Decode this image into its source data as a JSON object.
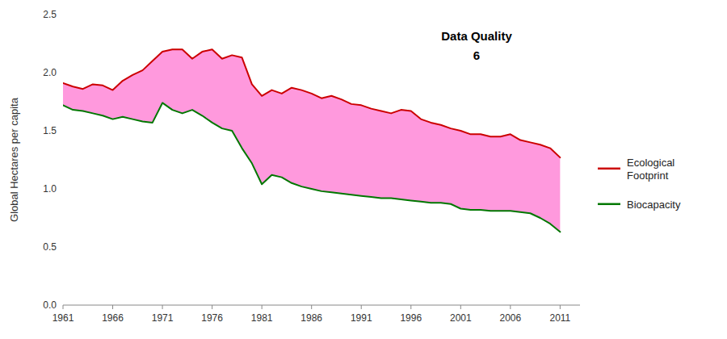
{
  "chart_data": {
    "type": "line",
    "ylabel": "Global Hectares per capita",
    "annotation": "Data Quality\n6",
    "color": "#ff99dd",
    "x": [
      1961,
      1962,
      1963,
      1964,
      1965,
      1966,
      1967,
      1968,
      1969,
      1970,
      1971,
      1972,
      1973,
      1974,
      1975,
      1976,
      1977,
      1978,
      1979,
      1980,
      1981,
      1982,
      1983,
      1984,
      1985,
      1986,
      1987,
      1988,
      1989,
      1990,
      1991,
      1992,
      1993,
      1994,
      1995,
      1996,
      1997,
      1998,
      1999,
      2000,
      2001,
      2002,
      2003,
      2004,
      2005,
      2006,
      2007,
      2008,
      2009,
      2010,
      2011
    ],
    "series": [
      {
        "name": "Ecological\nFootprint",
        "color": "#cc0000",
        "values": [
          1.91,
          1.88,
          1.86,
          1.9,
          1.89,
          1.85,
          1.93,
          1.98,
          2.02,
          2.1,
          2.18,
          2.2,
          2.2,
          2.12,
          2.18,
          2.2,
          2.12,
          2.15,
          2.13,
          1.9,
          1.8,
          1.85,
          1.82,
          1.87,
          1.85,
          1.82,
          1.78,
          1.8,
          1.77,
          1.73,
          1.72,
          1.69,
          1.67,
          1.65,
          1.68,
          1.67,
          1.6,
          1.57,
          1.55,
          1.52,
          1.5,
          1.47,
          1.47,
          1.45,
          1.45,
          1.47,
          1.42,
          1.4,
          1.38,
          1.35,
          1.27
        ]
      },
      {
        "name": "Biocapacity",
        "color": "#007700",
        "values": [
          1.72,
          1.68,
          1.67,
          1.65,
          1.63,
          1.6,
          1.62,
          1.6,
          1.58,
          1.57,
          1.74,
          1.68,
          1.65,
          1.68,
          1.63,
          1.57,
          1.52,
          1.5,
          1.35,
          1.22,
          1.04,
          1.12,
          1.1,
          1.05,
          1.02,
          1.0,
          0.98,
          0.97,
          0.96,
          0.95,
          0.94,
          0.93,
          0.92,
          0.92,
          0.91,
          0.9,
          0.89,
          0.88,
          0.88,
          0.87,
          0.83,
          0.82,
          0.82,
          0.81,
          0.81,
          0.81,
          0.8,
          0.79,
          0.75,
          0.7,
          0.63
        ]
      }
    ],
    "xlim": [
      1961,
      2013
    ],
    "xticks": [
      1961,
      1966,
      1971,
      1976,
      1981,
      1986,
      1991,
      1996,
      2001,
      2006,
      2011
    ],
    "ylim": [
      0.0,
      2.5
    ],
    "yticks": [
      {
        "value": 0.0,
        "label": "0.0"
      },
      0.5,
      {
        "value": 1.0,
        "label": "1.0"
      },
      1.5,
      {
        "value": 2.0,
        "label": "2.0"
      },
      2.5
    ],
    "grid": false,
    "legend": "right"
  }
}
